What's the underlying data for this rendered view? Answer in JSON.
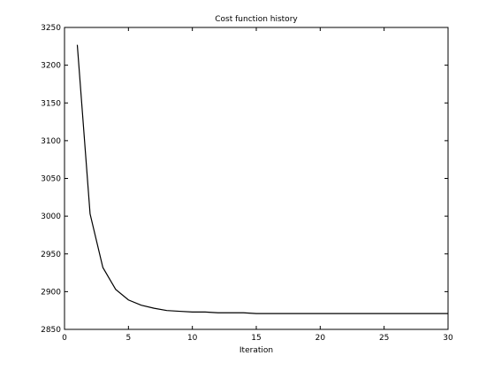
{
  "chart_data": {
    "type": "line",
    "title": "Cost function history",
    "xlabel": "Iteration",
    "ylabel": "",
    "xlim": [
      0,
      30
    ],
    "ylim": [
      2850,
      3250
    ],
    "xticks": [
      0,
      5,
      10,
      15,
      20,
      25,
      30
    ],
    "yticks": [
      2850,
      2900,
      2950,
      3000,
      3050,
      3100,
      3150,
      3200,
      3250
    ],
    "grid": false,
    "series": [
      {
        "color": "#000000",
        "x": [
          1,
          2,
          3,
          4,
          5,
          6,
          7,
          8,
          9,
          10,
          11,
          12,
          13,
          14,
          15,
          16,
          17,
          18,
          19,
          20,
          21,
          22,
          23,
          24,
          25,
          26,
          27,
          28,
          29,
          30
        ],
        "y": [
          3227,
          3003,
          2932,
          2903,
          2889,
          2882,
          2878,
          2875,
          2874,
          2873,
          2873,
          2872,
          2872,
          2872,
          2871,
          2871,
          2871,
          2871,
          2871,
          2871,
          2871,
          2871,
          2871,
          2871,
          2871,
          2871,
          2871,
          2871,
          2871,
          2871
        ]
      }
    ]
  }
}
